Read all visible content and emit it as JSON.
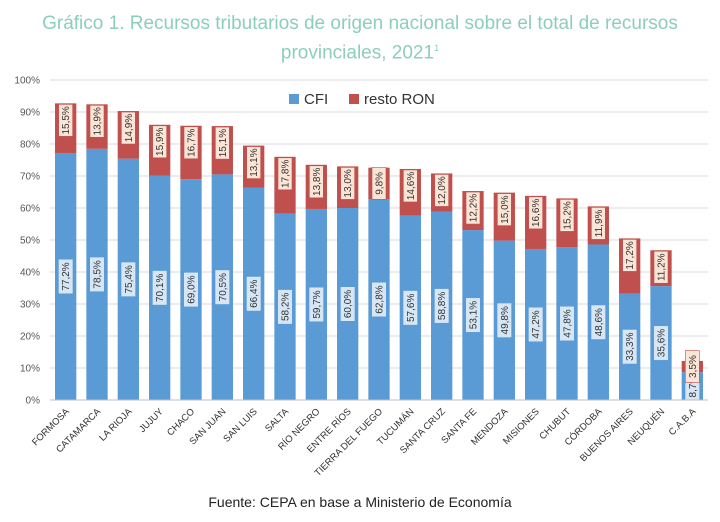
{
  "title": {
    "line1": "Gráfico 1. Recursos tributarios de origen nacional sobre el total de recursos",
    "line2": "provinciales, 2021",
    "superscript": "1"
  },
  "footer": "Fuente: CEPA en base a Ministerio de Economía",
  "colors": {
    "cfi": "#5b9bd5",
    "resto": "#c0504d",
    "label_bg_cfi": "#ffffff",
    "label_bg_resto": "#fbe5d6",
    "grid": "#d9d9d9",
    "title": "#8ccfb6"
  },
  "chart_data": {
    "type": "bar",
    "stacked": true,
    "categories": [
      "FORMOSA",
      "CATAMARCA",
      "LA RIOJA",
      "JUJUY",
      "CHACO",
      "SAN JUAN",
      "SAN LUIS",
      "SALTA",
      "RÍO NEGRO",
      "ENTRE RÍOS",
      "TIERRA DEL FUEGO",
      "TUCUMÁN",
      "SANTA CRUZ",
      "SANTA FE",
      "MENDOZA",
      "MISIONES",
      "CHUBUT",
      "CÓRDOBA",
      "BUENOS AIRES",
      "NEUQUÉN",
      "C.A.B.A"
    ],
    "series": [
      {
        "name": "CFI",
        "values": [
          77.2,
          78.5,
          75.4,
          70.1,
          69.0,
          70.5,
          66.4,
          58.2,
          59.7,
          60.0,
          62.8,
          57.6,
          58.8,
          53.1,
          49.8,
          47.2,
          47.8,
          48.6,
          33.3,
          35.6,
          8.7
        ],
        "labels": [
          "77,2%",
          "78,5%",
          "75,4%",
          "70,1%",
          "69,0%",
          "70,5%",
          "66,4%",
          "58,2%",
          "59,7%",
          "60,0%",
          "62,8%",
          "57,6%",
          "58,8%",
          "53,1%",
          "49,8%",
          "47,2%",
          "47,8%",
          "48,6%",
          "33,3%",
          "35,6%",
          "8,7%"
        ]
      },
      {
        "name": "resto RON",
        "values": [
          15.5,
          13.9,
          14.9,
          15.9,
          16.7,
          15.1,
          13.1,
          17.8,
          13.8,
          13.0,
          9.8,
          14.6,
          12.0,
          12.2,
          15.0,
          16.6,
          15.2,
          11.9,
          17.2,
          11.2,
          3.5
        ],
        "labels": [
          "15,5%",
          "13,9%",
          "14,9%",
          "15,9%",
          "16,7%",
          "15,1%",
          "13,1%",
          "17,8%",
          "13,8%",
          "13,0%",
          "9,8%",
          "14,6%",
          "12,0%",
          "12,2%",
          "15,0%",
          "16,6%",
          "15,2%",
          "11,9%",
          "17,2%",
          "11,2%",
          "3,5%"
        ]
      }
    ],
    "y_ticks": [
      "0%",
      "10%",
      "20%",
      "30%",
      "40%",
      "50%",
      "60%",
      "70%",
      "80%",
      "90%",
      "100%"
    ],
    "ylim": [
      0,
      100
    ],
    "grid": true,
    "legend": "top-center"
  }
}
